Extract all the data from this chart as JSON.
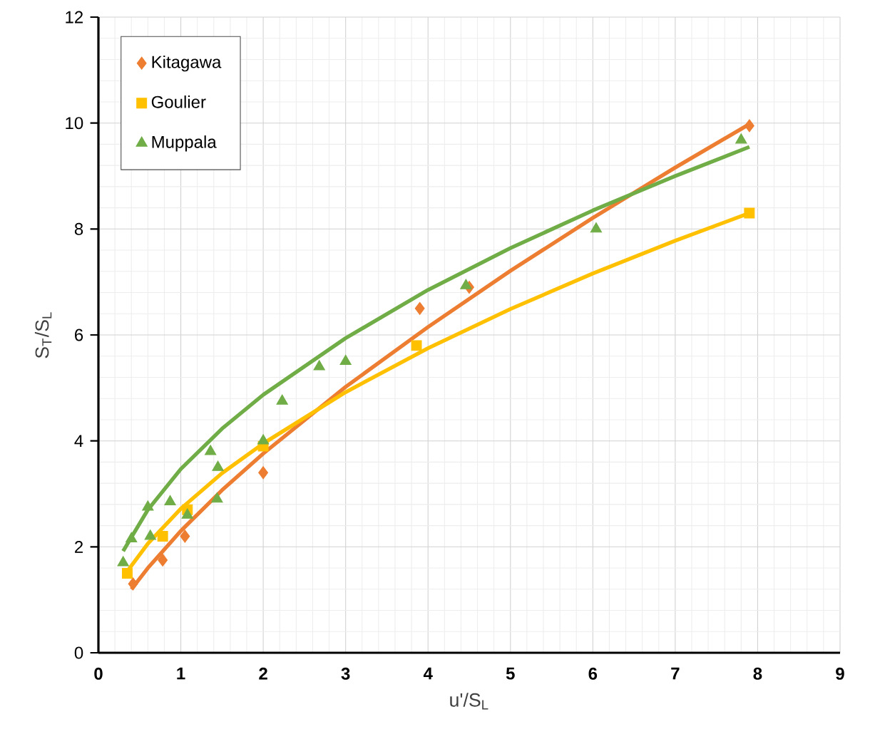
{
  "chart_data": {
    "type": "scatter",
    "xlabel": "u'/S$_{L}$",
    "ylabel": "S$_{T}$/S$_{L}$",
    "xlim": [
      0,
      9
    ],
    "ylim": [
      0,
      12
    ],
    "xticks": [
      0,
      1,
      2,
      3,
      4,
      5,
      6,
      7,
      8,
      9
    ],
    "yticks": [
      0,
      2,
      4,
      6,
      8,
      10,
      12
    ],
    "grid": true,
    "legend": "top left",
    "series": [
      {
        "type": "line",
        "color": "#ed7d31",
        "marker": "none",
        "x": [
          0.4,
          0.6,
          1,
          1.5,
          2,
          3,
          4,
          5,
          6,
          7,
          7.9
        ],
        "values": [
          1.2,
          1.6,
          2.3,
          3.07,
          3.76,
          5.02,
          6.15,
          7.21,
          8.21,
          9.16,
          9.98
        ]
      },
      {
        "type": "line",
        "color": "#ffc000",
        "marker": "none",
        "x": [
          0.35,
          0.6,
          1,
          1.5,
          2,
          3,
          4,
          5,
          6,
          7,
          7.9
        ],
        "values": [
          1.54,
          2.06,
          2.72,
          3.39,
          3.95,
          4.92,
          5.75,
          6.49,
          7.16,
          7.78,
          8.3
        ]
      },
      {
        "type": "line",
        "color": "#70ad47",
        "marker": "none",
        "x": [
          0.3,
          0.6,
          1,
          1.5,
          2,
          3,
          4,
          5,
          6,
          7,
          7.9
        ],
        "values": [
          1.92,
          2.7,
          3.47,
          4.23,
          4.87,
          5.94,
          6.85,
          7.64,
          8.35,
          9.0,
          9.55
        ]
      },
      {
        "name": "Kitagawa",
        "color": "#ed7d31",
        "marker": "diamond",
        "x": [
          0.42,
          0.78,
          1.05,
          2.0,
          3.9,
          4.5,
          7.9
        ],
        "values": [
          1.3,
          1.75,
          2.2,
          3.4,
          6.5,
          6.9,
          9.95
        ]
      },
      {
        "name": "Goulier",
        "color": "#ffc000",
        "marker": "square",
        "x": [
          0.35,
          0.78,
          1.08,
          2.0,
          3.86,
          7.9
        ],
        "values": [
          1.5,
          2.2,
          2.7,
          3.9,
          5.8,
          8.3
        ]
      },
      {
        "name": "Muppala",
        "color": "#70ad47",
        "marker": "triangle",
        "x": [
          0.3,
          0.4,
          0.6,
          0.63,
          0.87,
          1.08,
          1.36,
          1.45,
          1.44,
          2.0,
          2.23,
          2.68,
          3.0,
          4.46,
          6.04,
          7.8
        ],
        "values": [
          1.7,
          2.15,
          2.75,
          2.2,
          2.85,
          2.6,
          3.8,
          3.5,
          2.9,
          4.0,
          4.75,
          5.4,
          5.5,
          6.93,
          8.0,
          9.68
        ]
      }
    ]
  }
}
